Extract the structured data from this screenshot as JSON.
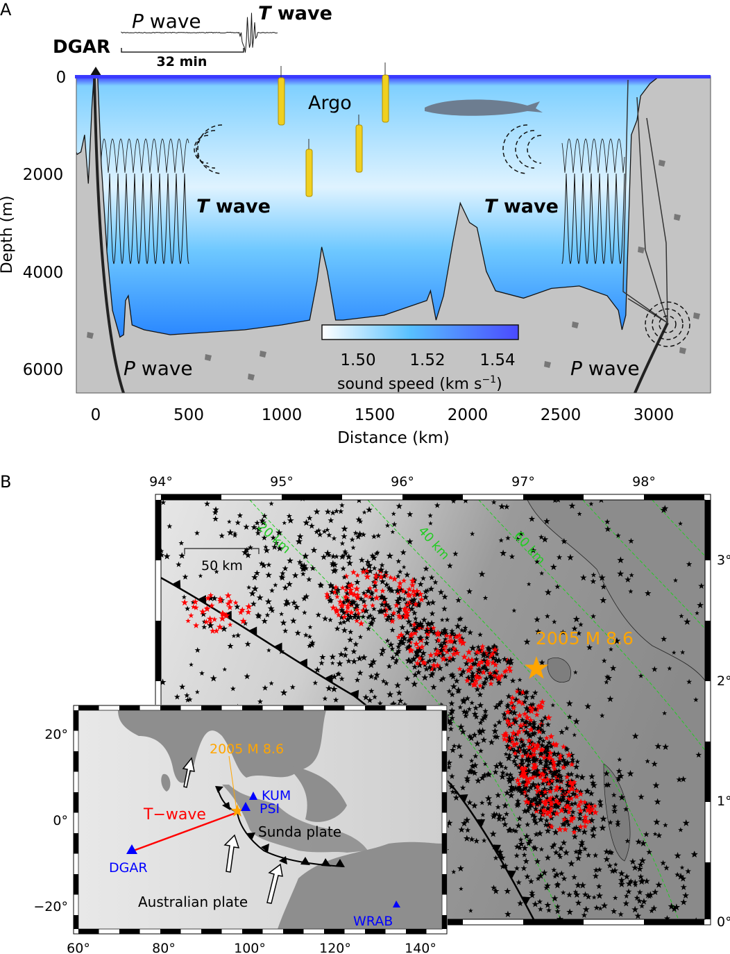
{
  "panel_a": {
    "label": "A",
    "station": "DGAR",
    "seismogram": {
      "p_label_italic": "P",
      "p_label_rest": " wave",
      "t_label_italic": "T",
      "t_label_rest": " wave",
      "scale": "32 min"
    },
    "argo": "Argo",
    "t_wave_left": {
      "italic": "T",
      "rest": " wave"
    },
    "t_wave_right": {
      "italic": "T",
      "rest": " wave"
    },
    "p_wave_left": {
      "italic": "P",
      "rest": " wave"
    },
    "p_wave_right": {
      "italic": "P",
      "rest": " wave"
    },
    "y_axis": {
      "label": "Depth (m)",
      "ticks": [
        "0",
        "2000",
        "4000",
        "6000"
      ]
    },
    "x_axis": {
      "label": "Distance (km)",
      "ticks": [
        "0",
        "500",
        "1000",
        "1500",
        "2000",
        "2500",
        "3000"
      ]
    },
    "colorbar": {
      "ticks": [
        "1.50",
        "1.52",
        "1.54"
      ],
      "label": "sound speed (km s",
      "label_sup": "−1",
      "label_end": ")",
      "colors": [
        "#ffffff",
        "#4a4aff"
      ]
    }
  },
  "panel_b": {
    "label": "B",
    "lon_ticks": [
      "94°",
      "95°",
      "96°",
      "97°",
      "98°"
    ],
    "lat_ticks": [
      "3°",
      "2°",
      "1°",
      "0°"
    ],
    "scale_bar": "50 km",
    "contours": [
      "20 km",
      "40 km",
      "60 km"
    ],
    "event": "2005 M 8.6",
    "colors": {
      "event": "#ffa500",
      "contour": "#22cc22",
      "aftershock_red": "#ff0000",
      "station": "#0000ff",
      "t_wave": "#ff0000"
    },
    "inset": {
      "event": "2005 M 8.6",
      "t_wave": "T−wave",
      "stations": [
        "KUM",
        "PSI",
        "DGAR",
        "WRAB"
      ],
      "sunda": "Sunda plate",
      "australian": "Australian plate",
      "lon_ticks": [
        "60°",
        "80°",
        "100°",
        "120°",
        "140°"
      ],
      "lat_ticks": [
        "20°",
        "0°",
        "−20°"
      ]
    }
  }
}
